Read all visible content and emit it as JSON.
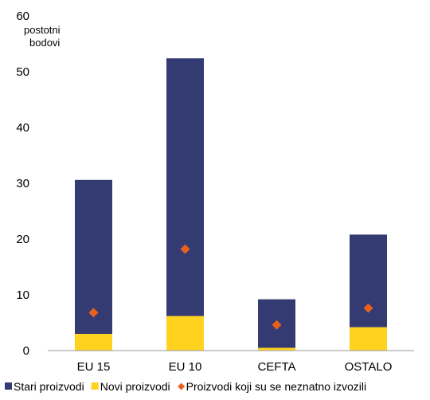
{
  "chart_data": {
    "type": "bar",
    "stacked": true,
    "ylabel_lines": [
      "postotni",
      "bodovi"
    ],
    "ylim": [
      0,
      60
    ],
    "yticks": [
      0,
      10,
      20,
      30,
      40,
      50,
      60
    ],
    "categories": [
      "EU 15",
      "EU 10",
      "CEFTA",
      "OSTALO"
    ],
    "series": [
      {
        "name": "Novi proizvodi",
        "kind": "bar",
        "color": "#FFD21F",
        "values": [
          3.0,
          6.2,
          0.5,
          4.2
        ]
      },
      {
        "name": "Stari proizvodi",
        "kind": "bar",
        "color": "#343B73",
        "values": [
          27.6,
          46.2,
          8.7,
          16.6
        ]
      },
      {
        "name": "Proizvodi koji su se neznatno izvozili",
        "kind": "marker",
        "color": "#E8601C",
        "values": [
          6.8,
          18.2,
          4.6,
          7.6
        ]
      }
    ],
    "legend": {
      "position": "bottom",
      "items": [
        {
          "label": "Stari proizvodi",
          "color": "#343B73",
          "marker": "square"
        },
        {
          "label": "Novi proizvodi",
          "color": "#FFD21F",
          "marker": "square"
        },
        {
          "label": "Proizvodi koji su se neznatno izvozili",
          "color": "#E8601C",
          "marker": "diamond"
        }
      ]
    },
    "grid": false
  }
}
